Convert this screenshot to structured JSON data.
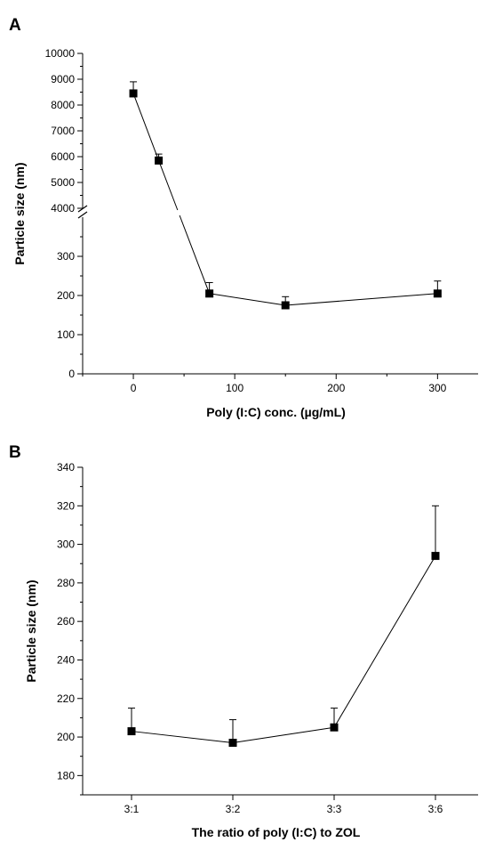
{
  "panels": [
    {
      "label": "A"
    },
    {
      "label": "B"
    }
  ],
  "chart_data": [
    {
      "type": "line",
      "xlabel": "Poly (I:C) conc. (µg/mL)",
      "ylabel": "Particle size (nm)",
      "xlim": [
        -50,
        340
      ],
      "x_ticks": [
        0,
        100,
        200,
        300
      ],
      "x_tick_labels": [
        "0",
        "100",
        "200",
        "300"
      ],
      "y_axis_break": {
        "lower": [
          0,
          400
        ],
        "upper": [
          4000,
          10000
        ]
      },
      "y_ticks_lower": [
        0,
        100,
        200,
        300
      ],
      "y_ticks_upper": [
        4000,
        5000,
        6000,
        7000,
        8000,
        9000,
        10000
      ],
      "series": [
        {
          "x": [
            0,
            25,
            75,
            150,
            300
          ],
          "values": [
            8450,
            5850,
            205,
            175,
            205
          ],
          "error": [
            450,
            250,
            28,
            22,
            32
          ]
        }
      ],
      "marker": "square",
      "grid": false
    },
    {
      "type": "line",
      "xlabel": "The ratio of poly (I:C) to ZOL",
      "ylabel": "Particle size (nm)",
      "categories": [
        "3:1",
        "3:2",
        "3:3",
        "3:6"
      ],
      "ylim": [
        170,
        340
      ],
      "y_ticks": [
        180,
        200,
        220,
        240,
        260,
        280,
        300,
        320,
        340
      ],
      "series": [
        {
          "values": [
            203,
            197,
            205,
            294
          ],
          "error": [
            12,
            12,
            10,
            26
          ]
        }
      ],
      "marker": "square",
      "grid": false
    }
  ]
}
